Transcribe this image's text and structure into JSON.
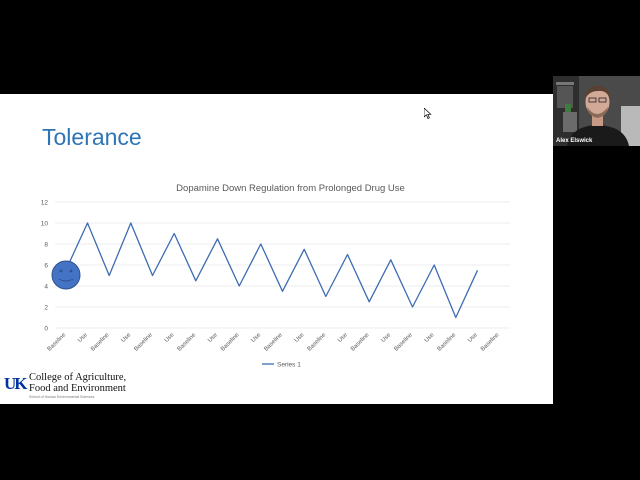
{
  "slide": {
    "title": "Tolerance",
    "logo": {
      "mark": "UK",
      "line1": "College of Agriculture,",
      "line2": "Food and Environment",
      "subtext": "School of Human Environmental Sciences"
    }
  },
  "video": {
    "participant_name": "Alex Elswick"
  },
  "colors": {
    "title": "#2e75b6",
    "series": "#3d6cb3",
    "grid": "#d9d9d9",
    "face": "#4472c4"
  },
  "icons": {
    "cursor": "mouse-pointer-icon",
    "face": "smiley-face-icon",
    "logo": "uk-logo-icon"
  },
  "chart_data": {
    "type": "line",
    "title": "Dopamine Down Regulation from Prolonged Drug Use",
    "categories": [
      "Baseline",
      "Use",
      "Baseline",
      "Use",
      "Baseline",
      "Use",
      "Baseline",
      "Use",
      "Baseline",
      "Use",
      "Baseline",
      "Use",
      "Baseline",
      "Use",
      "Baseline",
      "Use",
      "Baseline",
      "Use",
      "Baseline",
      "Use",
      "Baseline"
    ],
    "series": [
      {
        "name": "Series 1",
        "values": [
          5.5,
          10,
          5,
          10,
          5,
          9,
          4.5,
          8.5,
          4,
          8,
          3.5,
          7.5,
          3,
          7,
          2.5,
          6.5,
          2,
          6,
          1,
          5.5,
          null
        ]
      }
    ],
    "ylim": [
      0,
      12
    ],
    "yticks": [
      0,
      2,
      4,
      6,
      8,
      10,
      12
    ],
    "grid": true,
    "legend": "bottom",
    "xlabel": "",
    "ylabel": ""
  }
}
